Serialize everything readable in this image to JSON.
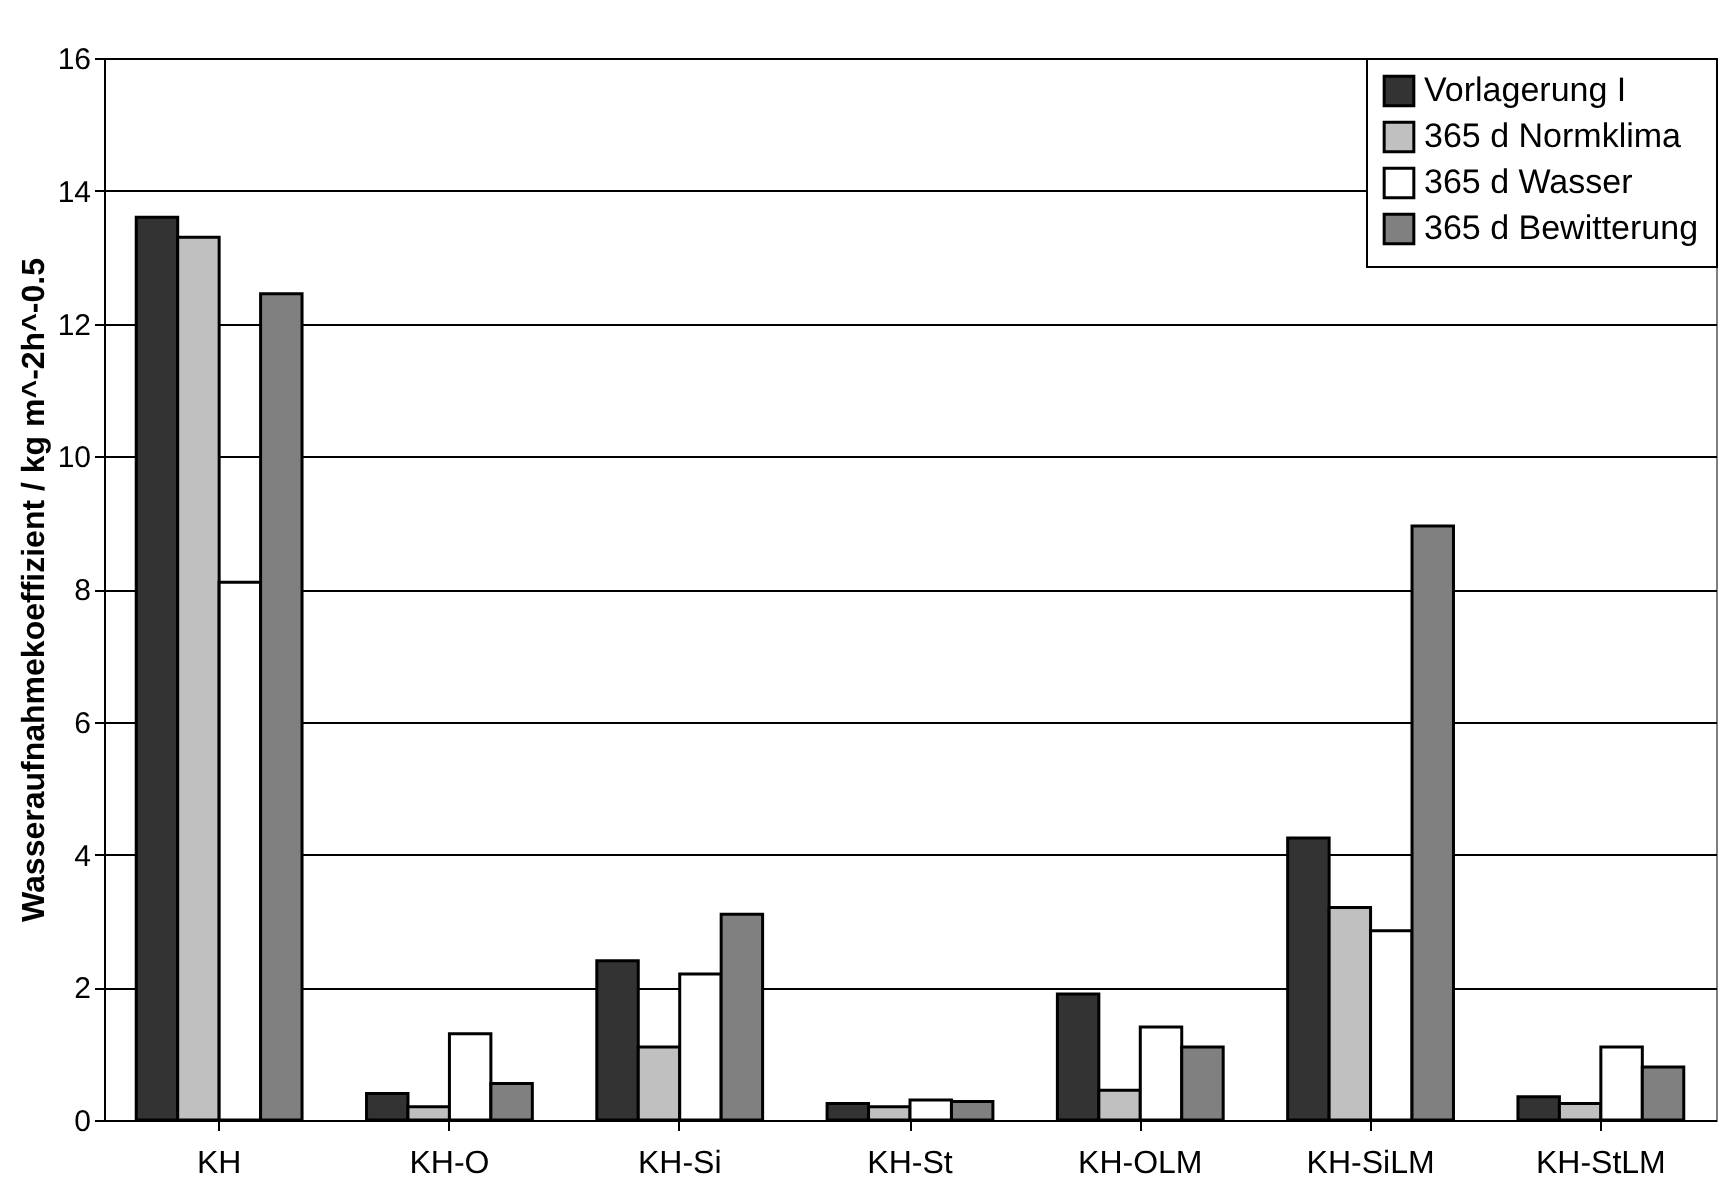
{
  "chart_data": {
    "type": "bar",
    "ylabel": "Wasseraufnahmekoeffizient / kg m^-2h^-0.5",
    "categories": [
      "KH",
      "KH-O",
      "KH-Si",
      "KH-St",
      "KH-OLM",
      "KH-SiLM",
      "KH-StLM"
    ],
    "series": [
      {
        "name": "Vorlagerung I",
        "color": "#333333",
        "values": [
          13.6,
          0.4,
          2.4,
          0.25,
          1.9,
          4.25,
          0.35
        ]
      },
      {
        "name": "365 d Normklima",
        "color": "#c0c0c0",
        "values": [
          13.3,
          0.2,
          1.1,
          0.2,
          0.45,
          3.2,
          0.25
        ]
      },
      {
        "name": "365 d Wasser",
        "color": "#ffffff",
        "values": [
          8.1,
          1.3,
          2.2,
          0.3,
          1.4,
          2.85,
          1.1
        ]
      },
      {
        "name": "365 d Bewitterung",
        "color": "#808080",
        "values": [
          12.45,
          0.55,
          3.1,
          0.28,
          1.1,
          8.95,
          0.8
        ]
      }
    ],
    "ylim": [
      0,
      16
    ],
    "yticks": [
      0,
      2,
      4,
      6,
      8,
      10,
      12,
      14,
      16
    ],
    "grid": "y",
    "legend": "top right"
  }
}
